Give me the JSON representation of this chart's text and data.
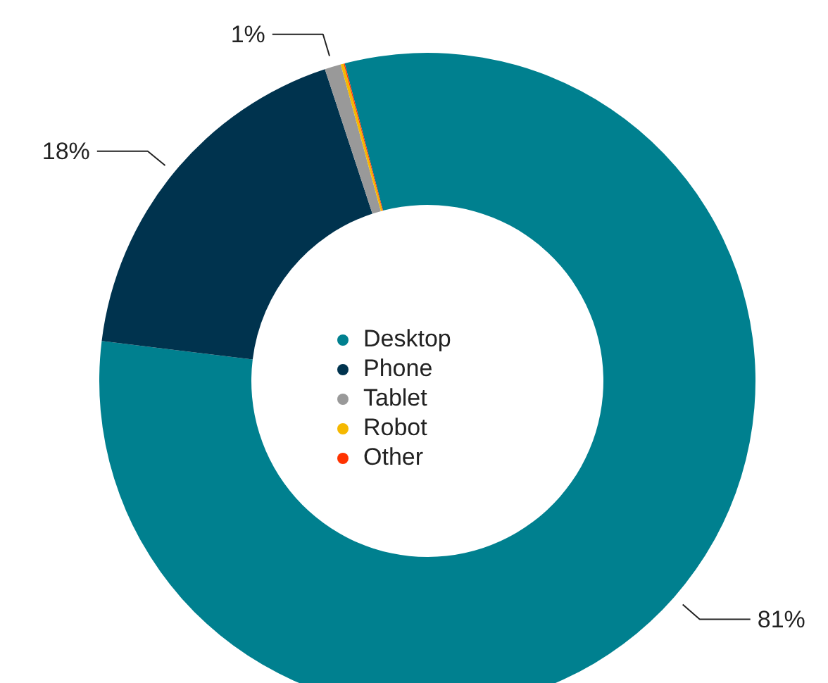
{
  "chart_data": {
    "type": "donut",
    "categories": [
      "Desktop",
      "Phone",
      "Tablet",
      "Robot",
      "Other"
    ],
    "values": [
      81,
      18,
      0.8,
      0.15,
      0.05
    ],
    "colors": [
      "#00808f",
      "#00334e",
      "#999999",
      "#f5b800",
      "#ff3300"
    ],
    "value_labels": [
      "81%",
      "18%",
      "1%",
      null,
      null
    ],
    "legend": "center"
  }
}
